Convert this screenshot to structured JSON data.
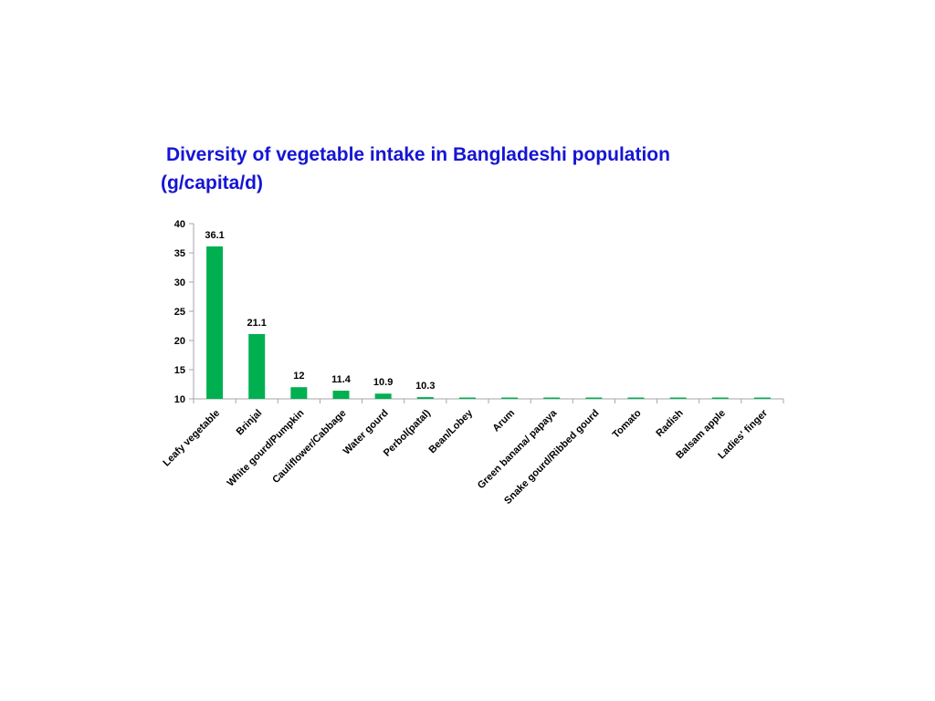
{
  "title": {
    "line1": "Diversity of vegetable intake in Bangladeshi population",
    "line2": "(g/capita/d",
    "line2_end": ")"
  },
  "chart_data": {
    "type": "bar",
    "title": "Diversity of vegetable intake in Bangladeshi population (g/capita/d)",
    "xlabel": "",
    "ylabel": "",
    "ylim": [
      10,
      40
    ],
    "yticks": [
      10,
      15,
      20,
      25,
      30,
      35,
      40
    ],
    "grid": false,
    "legend": "none",
    "bar_color": "#00b050",
    "categories": [
      "Leafy vegetable",
      "Brinjal",
      "White gourd/Pumpkin",
      "Cauliflower/Cabbage",
      "Water gourd",
      "Perbol(patal)",
      "Bean/Lobey",
      "Arum",
      "Green banana/ papaya",
      "Snake gourd/Ribbed gourd",
      "Tomato",
      "Radish",
      "Balsam apple",
      "Ladies' finger"
    ],
    "values": [
      36.1,
      21.1,
      12,
      11.4,
      10.9,
      10.3,
      9.8,
      9.5,
      9.2,
      9.0,
      8.6,
      8.2,
      7.8,
      7.5
    ],
    "data_labels": [
      "36.1",
      "21.1",
      "12",
      "11.4",
      "10.9",
      "10.3",
      null,
      null,
      null,
      null,
      null,
      null,
      null,
      null
    ]
  }
}
